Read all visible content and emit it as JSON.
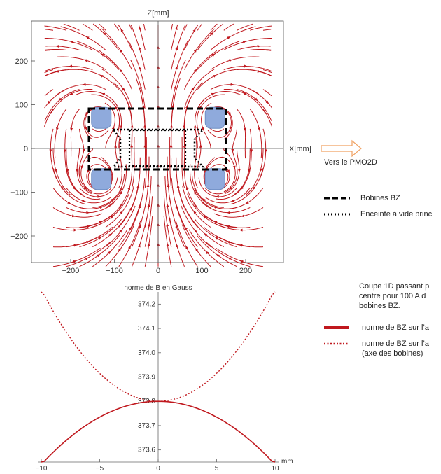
{
  "chart_data": [
    {
      "type": "vector-field",
      "title": "",
      "xlabel": "X[mm]",
      "ylabel": "Z[mm]",
      "xlim": [
        -280,
        290
      ],
      "ylim": [
        -300,
        300
      ],
      "xticks": [
        "−200",
        "−100",
        "0",
        "100",
        "200"
      ],
      "xtick_values": [
        -200,
        -100,
        0,
        100,
        200
      ],
      "yticks": [
        "200",
        "100",
        "0",
        "−100",
        "−200"
      ],
      "ytick_values": [
        200,
        100,
        0,
        -100,
        -200
      ],
      "field_color": "#c0181e",
      "coil_color": "#8faadc",
      "coils": [
        {
          "x": -130,
          "z": 70
        },
        {
          "x": 130,
          "z": 70
        },
        {
          "x": -130,
          "z": -70
        },
        {
          "x": 130,
          "z": -70
        }
      ],
      "legend": [
        {
          "style": "dashed",
          "label": "Bobines BZ"
        },
        {
          "style": "dotted",
          "label": "Enceinte à vide princ"
        }
      ],
      "arrow_label": "Vers le PMO2D"
    },
    {
      "type": "line",
      "title": "norme de B en Gauss",
      "xlabel": "mm",
      "ylabel": "",
      "xlim": [
        -10,
        10
      ],
      "ylim": [
        373.55,
        374.25
      ],
      "xticks": [
        "−10",
        "−5",
        "0",
        "5",
        "10"
      ],
      "xtick_values": [
        -10,
        -5,
        0,
        5,
        10
      ],
      "yticks": [
        "374.2",
        "374.1",
        "374.0",
        "373.9",
        "373.8",
        "373.7",
        "373.6"
      ],
      "ytick_values": [
        374.2,
        374.1,
        374.0,
        373.9,
        373.8,
        373.7,
        373.6
      ],
      "series": [
        {
          "name": "norme de BZ sur l’a",
          "style": "solid",
          "color": "#c0181e",
          "x": [
            -10,
            -7.5,
            -5,
            -2.5,
            0,
            2.5,
            5,
            7.5,
            10
          ],
          "values": [
            373.54,
            373.675,
            373.754,
            373.788,
            373.8,
            373.788,
            373.754,
            373.675,
            373.54
          ]
        },
        {
          "name": "norme de BZ sur l’a (axe des bobines)",
          "style": "dotted",
          "color": "#c0181e",
          "x": [
            -10,
            -7.5,
            -5,
            -2.5,
            0,
            2.5,
            5,
            7.5,
            10
          ],
          "values": [
            374.26,
            374.048,
            373.915,
            373.829,
            373.8,
            373.829,
            373.915,
            374.048,
            374.26
          ]
        }
      ],
      "caption": "Coupe 1D passant p centre  pour 100 A d bobines BZ."
    }
  ]
}
